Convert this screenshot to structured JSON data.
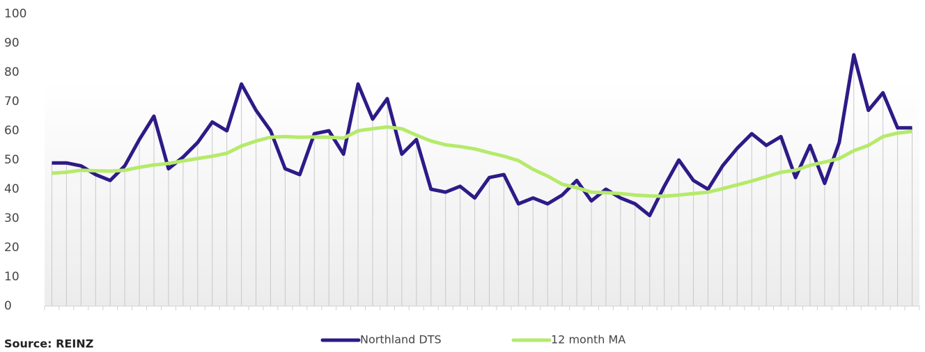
{
  "chart_data": {
    "type": "line",
    "categories": [
      null,
      null,
      null,
      null,
      null,
      null,
      null,
      null,
      null,
      null,
      null,
      null,
      null,
      null,
      null,
      null,
      null,
      null,
      null,
      null,
      null,
      null,
      null,
      null,
      null,
      null,
      null,
      null,
      null,
      null,
      null,
      null,
      null,
      null,
      null,
      null,
      null,
      null,
      null,
      null,
      null,
      null,
      null,
      null,
      null,
      null,
      null,
      null,
      null,
      null,
      null,
      null,
      null,
      null,
      null,
      null,
      null,
      null,
      null,
      null
    ],
    "series": [
      {
        "name": "Northland DTS",
        "color": "#2e1a87",
        "values": [
          49,
          49,
          48,
          45,
          43,
          48,
          57,
          65,
          47,
          51,
          56,
          63,
          60,
          76,
          67,
          60,
          47,
          45,
          59,
          60,
          52,
          76,
          64,
          71,
          52,
          57,
          40,
          39,
          41,
          37,
          44,
          45,
          35,
          37,
          35,
          38,
          43,
          36,
          40,
          37,
          35,
          31,
          41,
          50,
          43,
          40,
          48,
          54,
          59,
          55,
          58,
          44,
          55,
          42,
          56,
          86,
          67,
          73,
          61,
          61
        ]
      },
      {
        "name": "12 month MA",
        "color": "#b5ea6a",
        "values": [
          45.5,
          45.8,
          46.5,
          46.3,
          46.2,
          46.5,
          47.5,
          48.3,
          48.8,
          49.7,
          50.5,
          51.3,
          52.3,
          54.8,
          56.5,
          57.8,
          58,
          57.8,
          57.9,
          57.8,
          57.5,
          60,
          60.7,
          61.3,
          60.7,
          58.5,
          56.5,
          55.2,
          54.6,
          53.8,
          52.5,
          51.3,
          49.8,
          46.8,
          44.5,
          41.7,
          40.5,
          39,
          38.8,
          38.5,
          38,
          37.7,
          37.6,
          38,
          38.5,
          39,
          40.2,
          41.5,
          42.8,
          44.3,
          45.8,
          46.5,
          48.2,
          49.3,
          50.5,
          53.2,
          55,
          58,
          59.2,
          59.8
        ]
      }
    ],
    "ylim": [
      0,
      100
    ],
    "yticks": [
      0,
      10,
      20,
      30,
      40,
      50,
      60,
      70,
      80,
      90,
      100
    ],
    "legend": "bottom",
    "source": "Source: REINZ"
  }
}
